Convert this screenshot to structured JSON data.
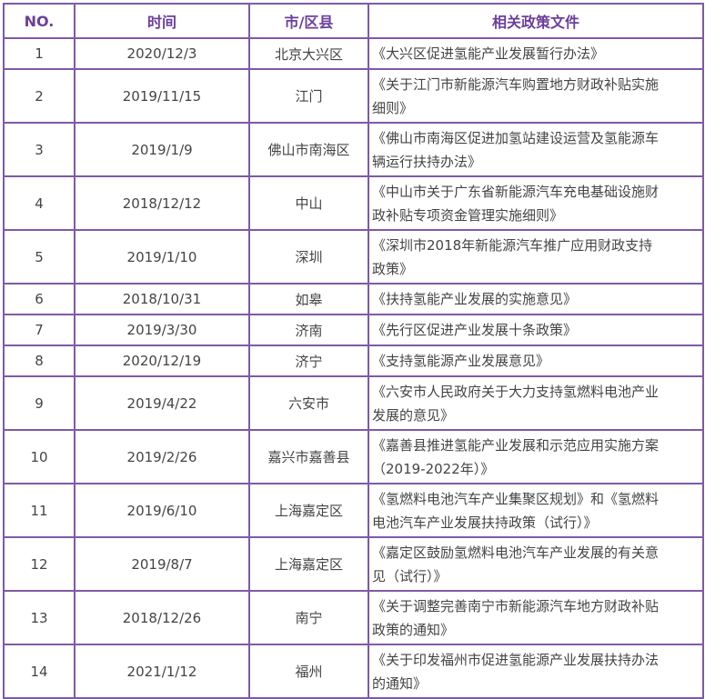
{
  "table": {
    "headers": [
      "NO.",
      "时间",
      "市/区县",
      "相关政策文件"
    ],
    "rows": [
      {
        "no": "1",
        "date": "2020/12/3",
        "city": "北京大兴区",
        "doc": "《大兴区促进氢能产业发展暂行办法》"
      },
      {
        "no": "2",
        "date": "2019/11/15",
        "city": "江门",
        "doc": "《关于江门市新能源汽车购置地方财政补贴实施\n细则》"
      },
      {
        "no": "3",
        "date": "2019/1/9",
        "city": "佛山市南海区",
        "doc": "《佛山市南海区促进加氢站建设运营及氢能源车\n辆运行扶持办法》"
      },
      {
        "no": "4",
        "date": "2018/12/12",
        "city": "中山",
        "doc": "《中山市关于广东省新能源汽车充电基础设施财\n政补贴专项资金管理实施细则》"
      },
      {
        "no": "5",
        "date": "2019/1/10",
        "city": "深圳",
        "doc": "《深圳市2018年新能源汽车推广应用财政支持\n政策》"
      },
      {
        "no": "6",
        "date": "2018/10/31",
        "city": "如皋",
        "doc": "《扶持氢能产业发展的实施意见》"
      },
      {
        "no": "7",
        "date": "2019/3/30",
        "city": "济南",
        "doc": "《先行区促进产业发展十条政策》"
      },
      {
        "no": "8",
        "date": "2020/12/19",
        "city": "济宁",
        "doc": "《支持氢能源产业发展意见》"
      },
      {
        "no": "9",
        "date": "2019/4/22",
        "city": "六安市",
        "doc": "《六安市人民政府关于大力支持氢燃料电池产业\n发展的意见》"
      },
      {
        "no": "10",
        "date": "2019/2/26",
        "city": "嘉兴市嘉善县",
        "doc": "《嘉善县推进氢能产业发展和示范应用实施方案\n（2019-2022年）》"
      },
      {
        "no": "11",
        "date": "2019/6/10",
        "city": "上海嘉定区",
        "doc": "《氢燃料电池汽车产业集聚区规划》和《氢燃料\n电池汽车产业发展扶持政策（试行）》"
      },
      {
        "no": "12",
        "date": "2019/8/7",
        "city": "上海嘉定区",
        "doc": "《嘉定区鼓励氢燃料电池汽车产业发展的有关意\n见（试行）》"
      },
      {
        "no": "13",
        "date": "2018/12/26",
        "city": "南宁",
        "doc": "《关于调整完善南宁市新能源汽车地方财政补贴\n政策的通知》"
      },
      {
        "no": "14",
        "date": "2021/1/12",
        "city": "福州",
        "doc": "《关于印发福州市促进氢能源产业发展扶持办法\n的通知》"
      }
    ]
  },
  "colors": {
    "border": "#7d5aa6",
    "header_text": "#6b3f9c",
    "body_text": "#444444"
  }
}
